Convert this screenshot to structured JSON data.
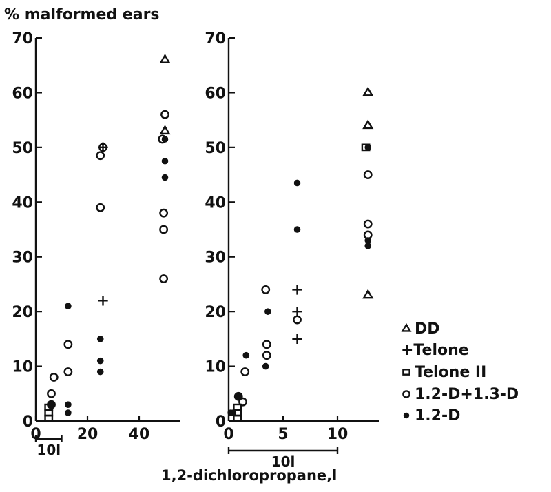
{
  "chart_data": {
    "type": "scatter",
    "ylabel": "% malformed ears",
    "xlabel": "1,2-dichloropropane,l",
    "legend": {
      "placement": "right",
      "entries": [
        {
          "marker": "triangle",
          "label": "DD"
        },
        {
          "marker": "plus",
          "label": "+Telone"
        },
        {
          "marker": "square",
          "label": "Telone II"
        },
        {
          "marker": "circle",
          "label": "1.2-D+1.3-D"
        },
        {
          "marker": "dot",
          "label": "1.2-D"
        }
      ]
    },
    "panels": [
      {
        "xlim": [
          0,
          52
        ],
        "ylim": [
          0,
          70
        ],
        "xticks": [
          "0",
          "20",
          "40"
        ],
        "xtick_values": [
          0,
          20,
          40
        ],
        "yticks": [
          "0",
          "10",
          "20",
          "30",
          "40",
          "50",
          "60",
          "70"
        ],
        "ytick_values": [
          0,
          10,
          20,
          30,
          40,
          50,
          60,
          70
        ],
        "scale_bar": {
          "label": "10l",
          "x": [
            0,
            10
          ]
        },
        "series": [
          {
            "marker": "triangle",
            "points": [
              [
                50,
                66
              ],
              [
                50,
                53
              ]
            ]
          },
          {
            "marker": "plus",
            "points": [
              [
                26,
                50
              ],
              [
                26,
                22
              ]
            ]
          },
          {
            "marker": "square",
            "points": [
              [
                5,
                0.5
              ],
              [
                5,
                1.5
              ],
              [
                5,
                2.5
              ]
            ]
          },
          {
            "marker": "circle",
            "points": [
              [
                6,
                3
              ],
              [
                6,
                5
              ],
              [
                7,
                8
              ],
              [
                12.5,
                9
              ],
              [
                12.5,
                14
              ],
              [
                25,
                39
              ],
              [
                25,
                48.5
              ],
              [
                26,
                50
              ],
              [
                49,
                51.5
              ],
              [
                50,
                56
              ],
              [
                49.5,
                38
              ],
              [
                49.5,
                35
              ],
              [
                49.5,
                26
              ]
            ]
          },
          {
            "marker": "dot",
            "points": [
              [
                6,
                3
              ],
              [
                12.5,
                21
              ],
              [
                12.5,
                3
              ],
              [
                12.5,
                1.5
              ],
              [
                25,
                15
              ],
              [
                25,
                11
              ],
              [
                25,
                9
              ],
              [
                50,
                51.5
              ],
              [
                50,
                47.5
              ],
              [
                50,
                44.5
              ]
            ]
          }
        ]
      },
      {
        "xlim": [
          0,
          14
        ],
        "ylim": [
          0,
          70
        ],
        "xticks": [
          "0",
          "5",
          "10"
        ],
        "xtick_values": [
          0,
          5,
          10
        ],
        "yticks": [
          "0",
          "10",
          "20",
          "30",
          "40",
          "50",
          "60",
          "70"
        ],
        "ytick_values": [
          0,
          10,
          20,
          30,
          40,
          50,
          60,
          70
        ],
        "scale_bar": {
          "label": "10l",
          "x": [
            0,
            10
          ]
        },
        "series": [
          {
            "marker": "triangle",
            "points": [
              [
                12.8,
                60
              ],
              [
                12.8,
                54
              ],
              [
                12.8,
                23
              ]
            ]
          },
          {
            "marker": "plus",
            "points": [
              [
                6.3,
                24
              ],
              [
                6.3,
                20
              ],
              [
                6.3,
                15
              ]
            ]
          },
          {
            "marker": "square",
            "points": [
              [
                0.8,
                0.5
              ],
              [
                0.8,
                1.5
              ],
              [
                0.8,
                2.5
              ],
              [
                12.6,
                50
              ]
            ]
          },
          {
            "marker": "circle",
            "points": [
              [
                0.9,
                4.5
              ],
              [
                1.3,
                3.5
              ],
              [
                1.5,
                9
              ],
              [
                3.4,
                24
              ],
              [
                3.5,
                14
              ],
              [
                3.5,
                12
              ],
              [
                6.3,
                18.5
              ],
              [
                12.8,
                45
              ],
              [
                12.8,
                36
              ],
              [
                12.8,
                34
              ]
            ]
          },
          {
            "marker": "dot",
            "points": [
              [
                0.2,
                1.5
              ],
              [
                0.4,
                1.5
              ],
              [
                0.9,
                4.5
              ],
              [
                1.6,
                12
              ],
              [
                3.4,
                10
              ],
              [
                3.6,
                20
              ],
              [
                6.3,
                43.5
              ],
              [
                6.3,
                35
              ],
              [
                12.8,
                50
              ],
              [
                12.8,
                33
              ],
              [
                12.8,
                32
              ]
            ]
          }
        ]
      }
    ]
  }
}
